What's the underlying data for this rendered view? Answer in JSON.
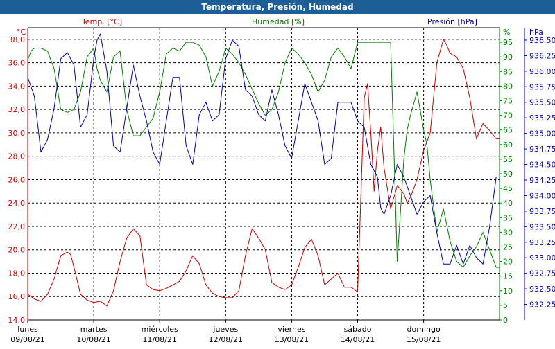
{
  "title": "Temperatura, Presión, Humedad",
  "colors": {
    "header_bg": "#1d5e96",
    "temperature": "#c00000",
    "humidity": "#007a00",
    "pressure": "#000099",
    "grid": "#000000"
  },
  "chart_data": {
    "type": "line",
    "title": "Temperatura, Presión, Humedad",
    "grid": true,
    "x_ticks": [
      {
        "day": "lunes",
        "date": "09/08/21"
      },
      {
        "day": "martes",
        "date": "10/08/21"
      },
      {
        "day": "miércoles",
        "date": "11/08/21"
      },
      {
        "day": "jueves",
        "date": "12/08/21"
      },
      {
        "day": "viernes",
        "date": "13/08/21"
      },
      {
        "day": "sábado",
        "date": "14/08/21"
      },
      {
        "day": "domingo",
        "date": "15/08/21"
      }
    ],
    "x_range_days": [
      0,
      7.15
    ],
    "axes": {
      "temperature": {
        "label": "Temp. [°C]",
        "unit": "°C",
        "range": [
          14,
          39
        ],
        "ticks": [
          "14,0",
          "16,0",
          "18,0",
          "20,0",
          "22,0",
          "24,0",
          "26,0",
          "28,0",
          "30,0",
          "32,0",
          "34,0",
          "36,0",
          "38,0"
        ]
      },
      "humidity": {
        "label": "Humedad [%]",
        "unit": "%",
        "range": [
          0,
          100
        ],
        "ticks": [
          "0",
          "5",
          "10",
          "15",
          "20",
          "25",
          "30",
          "35",
          "40",
          "45",
          "50",
          "55",
          "60",
          "65",
          "70",
          "75",
          "80",
          "85",
          "90",
          "95"
        ]
      },
      "pressure": {
        "label": "Presión [hPa]",
        "unit": "hPa",
        "range": [
          932.0,
          936.7
        ],
        "ticks": [
          "932,25",
          "932,50",
          "932,75",
          "933,00",
          "933,25",
          "933,50",
          "933,75",
          "934,00",
          "934,25",
          "934,50",
          "934,75",
          "935,00",
          "935,25",
          "935,50",
          "935,75",
          "936,00",
          "936,25",
          "936,50"
        ]
      }
    },
    "series": [
      {
        "name": "Temp. [°C]",
        "axis": "temperature",
        "x": [
          0.0,
          0.1,
          0.2,
          0.3,
          0.4,
          0.5,
          0.6,
          0.65,
          0.7,
          0.8,
          0.9,
          1.0,
          1.1,
          1.2,
          1.3,
          1.4,
          1.5,
          1.6,
          1.7,
          1.8,
          1.9,
          2.0,
          2.1,
          2.2,
          2.3,
          2.4,
          2.5,
          2.6,
          2.7,
          2.8,
          2.9,
          3.0,
          3.1,
          3.2,
          3.3,
          3.4,
          3.5,
          3.6,
          3.7,
          3.8,
          3.9,
          4.0,
          4.1,
          4.2,
          4.3,
          4.4,
          4.5,
          4.6,
          4.7,
          4.8,
          4.9,
          5.0,
          5.1,
          5.15,
          5.2,
          5.25,
          5.3,
          5.35,
          5.4,
          5.5,
          5.6,
          5.7,
          5.75,
          5.8,
          5.9,
          6.0,
          6.1,
          6.2,
          6.3,
          6.35,
          6.4,
          6.5,
          6.6,
          6.7,
          6.8,
          6.9,
          7.0,
          7.1,
          7.15
        ],
        "values": [
          16.2,
          15.8,
          15.6,
          16.2,
          17.5,
          19.5,
          19.8,
          19.6,
          18.5,
          16.2,
          15.7,
          15.5,
          15.6,
          15.2,
          16.5,
          19.0,
          21.0,
          21.8,
          21.2,
          17.0,
          16.6,
          16.5,
          16.7,
          17.0,
          17.3,
          18.2,
          19.5,
          18.8,
          17.0,
          16.3,
          16.0,
          15.9,
          15.9,
          16.5,
          19.5,
          21.8,
          21.0,
          20.0,
          17.2,
          16.8,
          16.6,
          17.0,
          18.5,
          20.2,
          20.9,
          19.5,
          17.0,
          17.5,
          18.0,
          16.8,
          16.8,
          16.4,
          33.0,
          34.2,
          30.0,
          25.0,
          28.5,
          30.5,
          27.0,
          23.5,
          25.5,
          24.8,
          24.0,
          24.5,
          26.0,
          28.5,
          30.0,
          36.0,
          38.0,
          37.5,
          36.8,
          36.5,
          35.5,
          33.0,
          29.5,
          30.8,
          30.2,
          29.5,
          29.5
        ]
      },
      {
        "name": "Humedad [%]",
        "axis": "humidity",
        "x": [
          0.0,
          0.05,
          0.1,
          0.2,
          0.3,
          0.4,
          0.5,
          0.6,
          0.7,
          0.8,
          0.9,
          1.0,
          1.05,
          1.1,
          1.2,
          1.3,
          1.4,
          1.5,
          1.6,
          1.7,
          1.8,
          1.9,
          2.0,
          2.1,
          2.2,
          2.3,
          2.4,
          2.5,
          2.6,
          2.7,
          2.8,
          2.9,
          3.0,
          3.1,
          3.2,
          3.3,
          3.4,
          3.5,
          3.6,
          3.7,
          3.8,
          3.9,
          4.0,
          4.1,
          4.2,
          4.3,
          4.4,
          4.5,
          4.6,
          4.7,
          4.8,
          4.9,
          5.0,
          5.1,
          5.15,
          5.2,
          5.3,
          5.4,
          5.5,
          5.6,
          5.7,
          5.75,
          5.8,
          5.9,
          6.0,
          6.05,
          6.1,
          6.2,
          6.3,
          6.4,
          6.5,
          6.6,
          6.7,
          6.8,
          6.9,
          7.0,
          7.1,
          7.15
        ],
        "values": [
          89,
          92,
          93,
          93,
          92,
          86,
          72,
          71,
          72,
          78,
          90,
          93,
          86,
          82,
          78,
          90,
          92,
          72,
          63,
          63,
          66,
          69,
          78,
          91,
          93,
          92,
          95,
          95,
          94,
          90,
          80,
          85,
          93,
          91,
          88,
          84,
          79,
          74,
          70,
          72,
          78,
          88,
          93,
          91,
          88,
          84,
          78,
          82,
          90,
          93,
          90,
          86,
          95,
          95,
          95,
          95,
          95,
          95,
          95,
          20,
          55,
          65,
          70,
          78,
          65,
          60,
          48,
          30,
          38,
          27,
          20,
          18,
          22,
          25,
          30,
          24,
          18,
          18
        ]
      },
      {
        "name": "Presión [hPa]",
        "axis": "pressure",
        "x": [
          0.0,
          0.1,
          0.2,
          0.3,
          0.4,
          0.5,
          0.6,
          0.7,
          0.8,
          0.9,
          1.0,
          1.05,
          1.1,
          1.2,
          1.3,
          1.4,
          1.5,
          1.6,
          1.7,
          1.8,
          1.9,
          2.0,
          2.1,
          2.2,
          2.3,
          2.4,
          2.5,
          2.6,
          2.7,
          2.8,
          2.9,
          3.0,
          3.1,
          3.2,
          3.3,
          3.4,
          3.5,
          3.6,
          3.7,
          3.8,
          3.9,
          4.0,
          4.1,
          4.2,
          4.3,
          4.4,
          4.5,
          4.6,
          4.7,
          4.8,
          4.9,
          5.0,
          5.1,
          5.2,
          5.3,
          5.35,
          5.4,
          5.5,
          5.6,
          5.7,
          5.8,
          5.9,
          6.0,
          6.1,
          6.2,
          6.3,
          6.4,
          6.5,
          6.6,
          6.7,
          6.8,
          6.9,
          7.0,
          7.1,
          7.15
        ],
        "values": [
          935.9,
          935.6,
          934.7,
          934.9,
          935.4,
          936.2,
          936.3,
          936.1,
          935.1,
          935.3,
          936.2,
          936.5,
          936.6,
          936.0,
          934.8,
          934.7,
          935.4,
          936.1,
          935.6,
          935.2,
          934.7,
          934.5,
          935.2,
          935.9,
          935.9,
          934.8,
          934.5,
          935.3,
          935.5,
          935.2,
          935.3,
          936.2,
          936.5,
          936.4,
          935.7,
          935.6,
          935.3,
          935.2,
          935.7,
          935.3,
          934.8,
          934.6,
          935.2,
          935.8,
          935.5,
          935.2,
          934.5,
          934.6,
          935.5,
          935.5,
          935.5,
          935.2,
          935.1,
          934.5,
          934.3,
          933.8,
          933.7,
          934.0,
          934.5,
          934.3,
          934.0,
          933.7,
          933.9,
          934.0,
          933.4,
          932.9,
          932.9,
          933.2,
          932.9,
          933.2,
          933.0,
          932.9,
          933.5,
          934.3,
          934.3
        ]
      }
    ]
  }
}
